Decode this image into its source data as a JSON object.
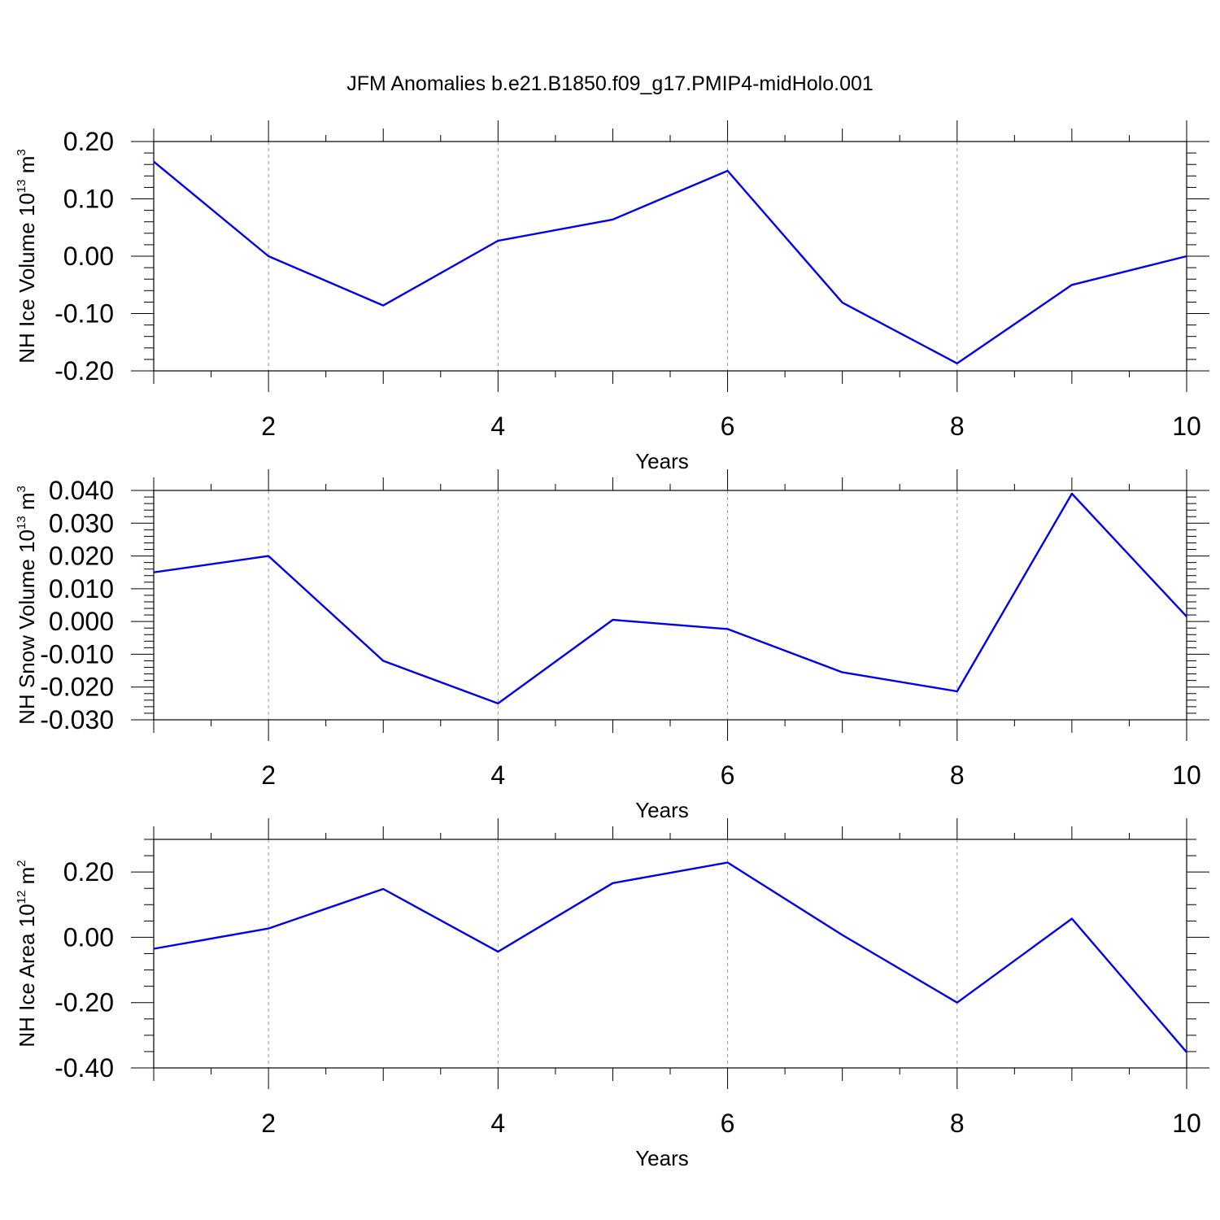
{
  "title": "JFM Anomalies b.e21.B1850.f09_g17.PMIP4-midHolo.001",
  "colors": {
    "line": "#0000ee",
    "axis": "#000000",
    "grid": "#999999"
  },
  "chart_data": [
    {
      "type": "line",
      "ylabel": {
        "text": "NH Ice Volume 10",
        "sup": "13",
        "unit": " m",
        "unit_sup": "3"
      },
      "xlabel": "Years",
      "xlim": [
        1,
        10
      ],
      "ylim": [
        -0.2,
        0.2
      ],
      "x_ticks": [
        "2",
        "4",
        "6",
        "8",
        "10"
      ],
      "x_tick_values": [
        2,
        4,
        6,
        8,
        10
      ],
      "y_ticks": [
        "0.20",
        "0.10",
        "0.00",
        "-0.10",
        "-0.20"
      ],
      "y_tick_values": [
        0.2,
        0.1,
        0.0,
        -0.1,
        -0.2
      ],
      "y_minor_step": 0.02,
      "x": [
        1,
        2,
        3,
        4,
        5,
        6,
        7,
        8,
        9,
        10
      ],
      "values": [
        0.165,
        0.0,
        -0.086,
        0.027,
        0.064,
        0.149,
        -0.081,
        -0.187,
        -0.05,
        0.0
      ]
    },
    {
      "type": "line",
      "ylabel": {
        "text": "NH Snow Volume 10",
        "sup": "13",
        "unit": " m",
        "unit_sup": "3"
      },
      "xlabel": "Years",
      "xlim": [
        1,
        10
      ],
      "ylim": [
        -0.03,
        0.04
      ],
      "x_ticks": [
        "2",
        "4",
        "6",
        "8",
        "10"
      ],
      "x_tick_values": [
        2,
        4,
        6,
        8,
        10
      ],
      "y_ticks": [
        "0.040",
        "0.030",
        "0.020",
        "0.010",
        "0.000",
        "-0.010",
        "-0.020",
        "-0.030"
      ],
      "y_tick_values": [
        0.04,
        0.03,
        0.02,
        0.01,
        0.0,
        -0.01,
        -0.02,
        -0.03
      ],
      "y_minor_step": 0.002,
      "x": [
        1,
        2,
        3,
        4,
        5,
        6,
        7,
        8,
        9,
        10
      ],
      "values": [
        0.015,
        0.02,
        -0.012,
        -0.025,
        0.0005,
        -0.0023,
        -0.0155,
        -0.0213,
        0.039,
        0.0015
      ]
    },
    {
      "type": "line",
      "ylabel": {
        "text": "NH Ice Area 10",
        "sup": "12",
        "unit": " m",
        "unit_sup": "2"
      },
      "xlabel": "Years",
      "xlim": [
        1,
        10
      ],
      "ylim": [
        -0.4,
        0.3
      ],
      "x_ticks": [
        "2",
        "4",
        "6",
        "8",
        "10"
      ],
      "x_tick_values": [
        2,
        4,
        6,
        8,
        10
      ],
      "y_ticks": [
        "0.20",
        "0.00",
        "-0.20",
        "-0.40"
      ],
      "y_tick_values": [
        0.2,
        0.0,
        -0.2,
        -0.4
      ],
      "y_minor_step": 0.05,
      "x": [
        1,
        2,
        3,
        4,
        5,
        6,
        7,
        8,
        9,
        10
      ],
      "values": [
        -0.035,
        0.027,
        0.148,
        -0.044,
        0.166,
        0.229,
        0.007,
        -0.2,
        0.057,
        -0.352
      ]
    }
  ]
}
